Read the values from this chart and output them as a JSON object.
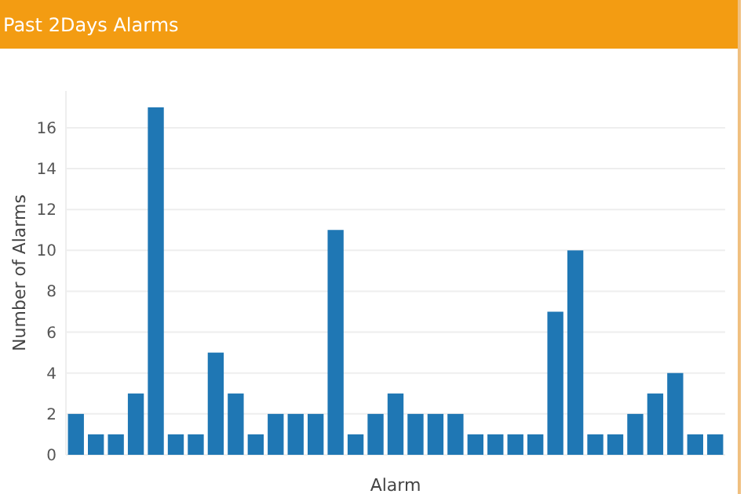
{
  "chart_data": {
    "type": "bar",
    "title": "Past 2Days Alarms",
    "xlabel": "Alarm",
    "ylabel": "Number of Alarms",
    "categories": [
      null,
      null,
      null,
      null,
      null,
      null,
      null,
      null,
      null,
      null,
      null,
      null,
      null,
      null,
      null,
      null,
      null,
      null,
      null,
      null,
      null,
      null,
      null,
      null,
      null,
      null,
      null,
      null,
      null,
      null,
      null,
      null,
      null
    ],
    "values": [
      2,
      1,
      1,
      3,
      17,
      1,
      1,
      5,
      3,
      1,
      2,
      2,
      2,
      11,
      1,
      2,
      3,
      2,
      2,
      2,
      1,
      1,
      1,
      1,
      7,
      10,
      1,
      1,
      2,
      3,
      4,
      1,
      1
    ],
    "color": "#1f77b4",
    "ylim": [
      0,
      17.8
    ],
    "yticks": [
      0,
      2,
      4,
      6,
      8,
      10,
      12,
      14,
      16
    ],
    "grid": "y"
  }
}
